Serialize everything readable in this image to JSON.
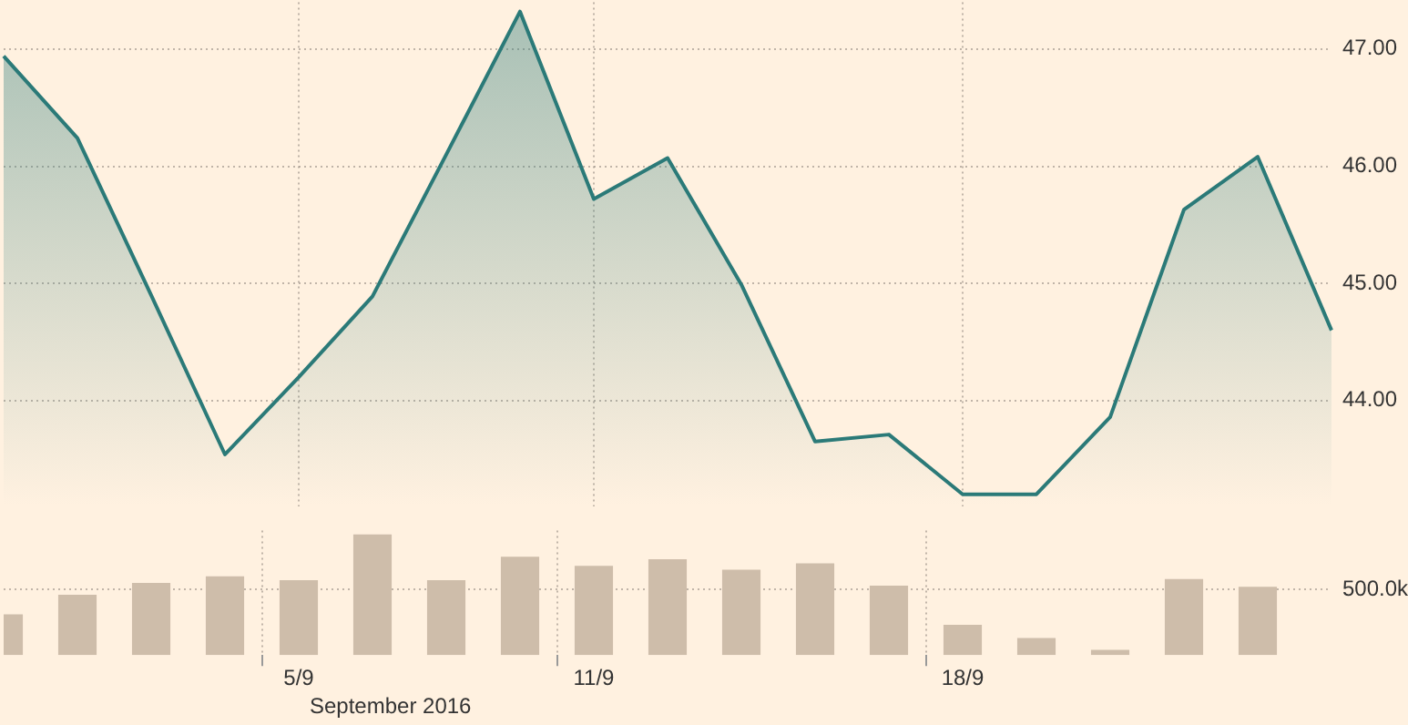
{
  "chart_data": [
    {
      "type": "area",
      "categories": [
        null,
        null,
        null,
        null,
        null,
        null,
        null,
        null,
        null,
        null,
        null,
        null,
        null,
        null,
        null,
        null,
        null,
        null,
        null
      ],
      "series": [
        {
          "color": "#2b7a78",
          "values": [
            46.94,
            46.24,
            44.9,
            43.54,
            44.2,
            44.89,
            46.1,
            47.32,
            45.72,
            46.07,
            44.99,
            43.65,
            43.71,
            43.2,
            43.2,
            43.86,
            45.63,
            46.08,
            44.6
          ]
        }
      ],
      "ylim": [
        43.1,
        47.4
      ],
      "yticks": [
        {
          "value": 44,
          "label": "44.00"
        },
        {
          "value": 45,
          "label": "45.00"
        },
        {
          "value": 46,
          "label": "46.00"
        },
        {
          "value": 47,
          "label": "47.00"
        }
      ],
      "grid": true,
      "legend": false,
      "tick_labels": "y"
    },
    {
      "type": "bar",
      "categories": [
        null,
        null,
        null,
        null,
        "5/9",
        null,
        null,
        null,
        "11/9",
        null,
        null,
        null,
        null,
        "18/9",
        null,
        null,
        null,
        null,
        null
      ],
      "xlabel": "September 2016",
      "series": [
        {
          "color": "#cebdaa",
          "values": [
            310000,
            460000,
            550000,
            600000,
            570000,
            920000,
            570000,
            750000,
            680000,
            730000,
            650000,
            700000,
            530000,
            230000,
            130000,
            40000,
            580000,
            520000,
            null
          ]
        }
      ],
      "ylim": [
        0,
        950000
      ],
      "yticks": [
        {
          "value": 500000,
          "label": "500.0k"
        }
      ],
      "grid": true,
      "legend": false
    }
  ]
}
